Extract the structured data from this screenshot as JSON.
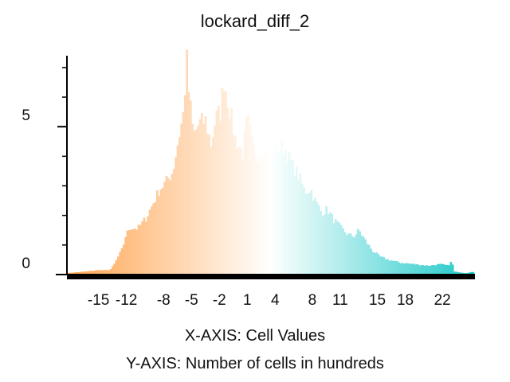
{
  "chart_data": {
    "type": "bar",
    "title": "lockard_diff_2",
    "xlabel": "X-AXIS: Cell Values",
    "ylabel": "Y-AXIS: Number of cells in hundreds",
    "xlim": [
      -18.4,
      25.5
    ],
    "ylim": [
      0,
      7.4
    ],
    "x_ticks": [
      -15,
      -12,
      -8,
      -5,
      -2,
      1,
      4,
      8,
      11,
      15,
      18,
      22
    ],
    "y_ticks": [
      0,
      5
    ],
    "y_minor_ticks": [
      1,
      2,
      3,
      4,
      5,
      6,
      7
    ],
    "grid": false,
    "legend": "none",
    "colors": {
      "low": "#ffa450",
      "mid": "#ffffff",
      "high": "#1ec8c8"
    },
    "bin_width": 0.2,
    "points": [
      [
        -18.4,
        0.05
      ],
      [
        -16.5,
        0.1
      ],
      [
        -15.0,
        0.15
      ],
      [
        -13.8,
        0.15
      ],
      [
        -13.4,
        0.3
      ],
      [
        -12.9,
        0.6
      ],
      [
        -12.4,
        0.9
      ],
      [
        -12.1,
        1.3
      ],
      [
        -11.6,
        1.6
      ],
      [
        -10.8,
        1.55
      ],
      [
        -9.9,
        1.9
      ],
      [
        -9.0,
        2.5
      ],
      [
        -8.4,
        2.9
      ],
      [
        -7.8,
        3.1
      ],
      [
        -7.0,
        3.5
      ],
      [
        -6.4,
        4.6
      ],
      [
        -5.9,
        5.4
      ],
      [
        -5.5,
        7.2
      ],
      [
        -5.3,
        6.2
      ],
      [
        -4.8,
        4.7
      ],
      [
        -4.2,
        5.1
      ],
      [
        -3.5,
        5.2
      ],
      [
        -2.9,
        4.4
      ],
      [
        -2.4,
        5.3
      ],
      [
        -1.9,
        5.5
      ],
      [
        -1.5,
        6.6
      ],
      [
        -0.9,
        5.6
      ],
      [
        -0.3,
        4.6
      ],
      [
        0.5,
        4.1
      ],
      [
        1.0,
        5.3
      ],
      [
        1.6,
        4.3
      ],
      [
        2.2,
        4.0
      ],
      [
        2.6,
        4.3
      ],
      [
        3.1,
        4.05
      ],
      [
        4.0,
        4.3
      ],
      [
        5.0,
        4.3
      ],
      [
        5.6,
        3.85
      ],
      [
        6.2,
        3.5
      ],
      [
        6.7,
        3.2
      ],
      [
        7.2,
        2.8
      ],
      [
        7.8,
        2.9
      ],
      [
        8.3,
        2.5
      ],
      [
        9.0,
        2.1
      ],
      [
        9.6,
        2.2
      ],
      [
        10.2,
        1.9
      ],
      [
        11.0,
        1.6
      ],
      [
        11.8,
        1.35
      ],
      [
        12.5,
        1.3
      ],
      [
        13.0,
        1.5
      ],
      [
        13.8,
        1.1
      ],
      [
        14.5,
        0.8
      ],
      [
        15.3,
        0.6
      ],
      [
        16.2,
        0.5
      ],
      [
        17.5,
        0.4
      ],
      [
        19.0,
        0.35
      ],
      [
        20.5,
        0.3
      ],
      [
        21.8,
        0.35
      ],
      [
        22.6,
        0.3
      ],
      [
        23.0,
        0.45
      ],
      [
        23.3,
        0.1
      ],
      [
        24.5,
        0.05
      ],
      [
        25.5,
        0.1
      ]
    ]
  }
}
